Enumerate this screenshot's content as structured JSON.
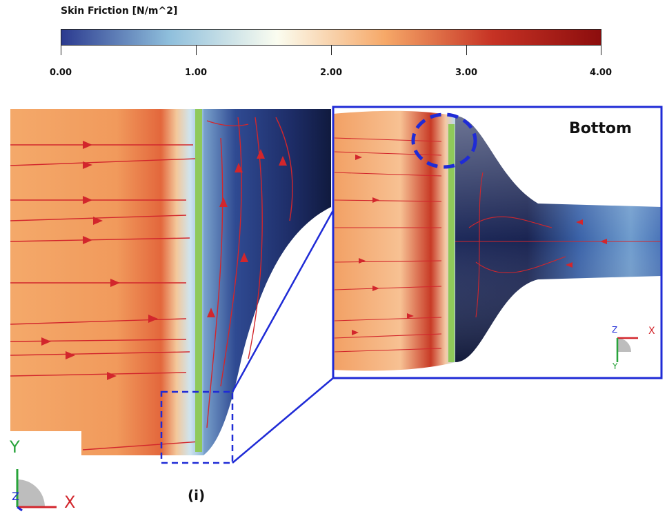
{
  "colorbar": {
    "title": "Skin Friction [N/m^2]",
    "ticks": [
      "0.00",
      "1.00",
      "2.00",
      "3.00",
      "4.00"
    ],
    "colors": [
      "#2b3a8f",
      "#8fbfdc",
      "#fbfdf0",
      "#f6a868",
      "#c63224",
      "#8c0d0d"
    ]
  },
  "inset": {
    "label": "Bottom",
    "axes": {
      "x": "X",
      "y": "Y",
      "z": "Z"
    }
  },
  "main_axes": {
    "x": "X",
    "y": "Y",
    "z": "Z"
  },
  "figure_label": "(i)",
  "colors": {
    "highlight_box": "#1f2bd6",
    "marker_line": "#8fc95a",
    "streamline": "#d2262c",
    "axis_x": "#d2262c",
    "axis_y": "#27a33a",
    "axis_z": "#1f2bd6"
  }
}
